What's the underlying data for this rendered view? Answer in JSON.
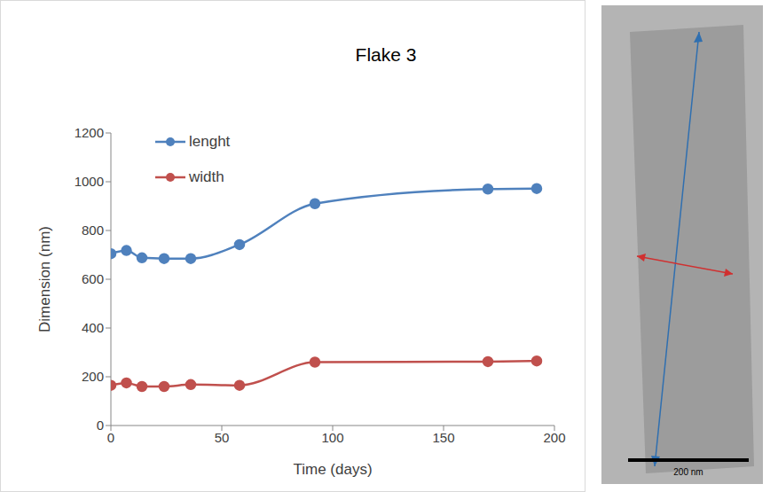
{
  "chart_data": {
    "type": "line",
    "title": "Flake 3",
    "x_label": "Time (days)",
    "y_label": "Dimension (nm)",
    "x": [
      0,
      7,
      14,
      24,
      36,
      58,
      92,
      170,
      192
    ],
    "series": [
      {
        "name": "lenght",
        "color": "#4f81bd",
        "values": [
          705,
          718,
          688,
          685,
          685,
          742,
          910,
          970,
          972
        ],
        "marker": "circle",
        "line_style": "solid"
      },
      {
        "name": "width",
        "color": "#c0504d",
        "values": [
          165,
          175,
          160,
          160,
          168,
          165,
          260,
          262,
          265
        ],
        "marker": "circle",
        "line_style": "solid"
      }
    ],
    "xlim": [
      0,
      200
    ],
    "xticks": [
      0,
      50,
      100,
      150,
      200
    ],
    "ylim": [
      0,
      1200
    ],
    "yticks": [
      0,
      200,
      400,
      600,
      800,
      1000,
      1200
    ],
    "grid": false,
    "legend": "upper left",
    "annotation": "200 nm"
  }
}
